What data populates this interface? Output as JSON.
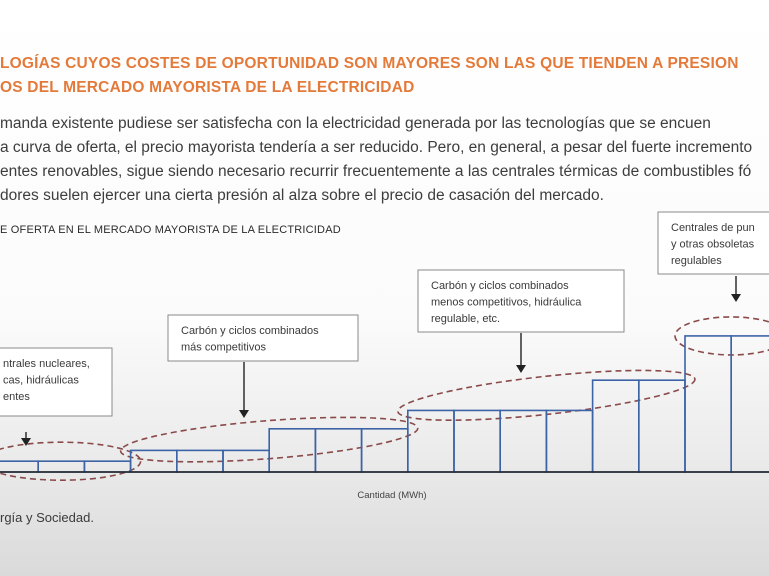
{
  "heading": {
    "line1": "LOGÍAS CUYOS COSTES DE OPORTUNIDAD SON MAYORES SON LAS QUE TIENDEN A PRESION",
    "line2": "OS DEL MERCADO MAYORISTA DE LA ELECTRICIDAD"
  },
  "paragraph": {
    "line1": "manda existente pudiese ser satisfecha con la electricidad generada por las tecnologías que se encuen",
    "line2": "a curva de oferta, el precio mayorista tendería a ser reducido. Pero, en general, a pesar del fuerte incremento",
    "line3": "entes renovables, sigue siendo necesario recurrir frecuentemente a las centrales térmicas de combustibles fó",
    "line4": "dores suelen ejercer una cierta presión al alza sobre el precio de casación del mercado."
  },
  "figure_title": "E OFERTA EN EL MERCADO MAYORISTA DE LA ELECTRICIDAD",
  "callouts": [
    {
      "lines": [
        "ntrales nucleares,",
        "cas, hidráulicas",
        "entes"
      ]
    },
    {
      "lines": [
        "Carbón y ciclos combinados",
        "más competitivos"
      ]
    },
    {
      "lines": [
        "Carbón y ciclos combinados",
        "menos competitivos, hidráulica",
        "regulable, etc."
      ]
    },
    {
      "lines": [
        "Centrales de pun",
        "y otras obsoletas",
        "regulables"
      ]
    }
  ],
  "chart_data": {
    "type": "bar",
    "xlabel": "Cantidad (MWh)",
    "ylabel": "",
    "steps": [
      {
        "group": 0,
        "count": 3,
        "height": 1.0
      },
      {
        "group": 1,
        "count": 3,
        "height": 2.0
      },
      {
        "group": 1,
        "count": 3,
        "height": 4.0
      },
      {
        "group": 2,
        "count": 4,
        "height": 5.7
      },
      {
        "group": 2,
        "count": 2,
        "height": 8.5
      },
      {
        "group": 3,
        "count": 2,
        "height": 12.6
      }
    ]
  },
  "source": "rgía y Sociedad.",
  "colors": {
    "heading": "#e47a3a",
    "bars": "#3b63a6",
    "ellipses": "#8a4a4a"
  }
}
